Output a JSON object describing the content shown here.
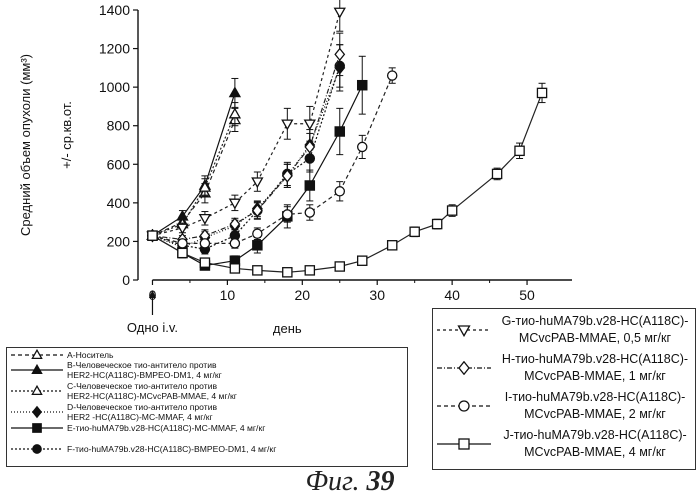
{
  "chart_data": {
    "type": "line",
    "title": "",
    "xlabel": "день",
    "ylabel": "Средний объем опухоли  (мм³)",
    "ylabel2": "+/- ср.кв.от.",
    "xlim": [
      -3,
      56
    ],
    "ylim": [
      0,
      1400
    ],
    "xticks": [
      0,
      10,
      20,
      30,
      40,
      50
    ],
    "yticks": [
      0,
      200,
      400,
      600,
      800,
      1000,
      1200,
      1400
    ],
    "annotation": "Одно i.v.",
    "series": [
      {
        "name": "A-Носитель",
        "marker": "triangle-up",
        "fill": "none",
        "dash": "4,3",
        "color": "#222",
        "x": [
          0,
          4,
          7,
          11
        ],
        "y": [
          230,
          300,
          450,
          830
        ],
        "err": [
          0,
          30,
          50,
          60
        ]
      },
      {
        "name": "B-Человеческое тио-антитело против\nHER2-HC(A118C)-BMPEO-DM1, 4 мг/кг",
        "marker": "triangle-up",
        "fill": "solid",
        "dash": "",
        "color": "#111",
        "x": [
          0,
          4,
          7,
          11
        ],
        "y": [
          230,
          330,
          490,
          970
        ],
        "err": [
          0,
          30,
          50,
          75
        ]
      },
      {
        "name": "C-Человеческое тио-антитело против\nHER2-HC(A118C)-MCvcPAB-MMAE, 4 мг/кг",
        "marker": "triangle-up",
        "fill": "none",
        "dash": "2,2",
        "color": "#222",
        "x": [
          0,
          4,
          7,
          11
        ],
        "y": [
          230,
          290,
          480,
          860
        ],
        "err": [
          0,
          25,
          45,
          60
        ]
      },
      {
        "name": "D-Человеческое тио-антитело против\nHER2 -HC(A118C)-MC-MMAF, 4 мг/кг",
        "marker": "diamond",
        "fill": "solid",
        "dash": "1,2",
        "color": "#111",
        "x": [
          0,
          4,
          7,
          11,
          14,
          18,
          21,
          25
        ],
        "y": [
          230,
          170,
          220,
          280,
          370,
          540,
          700,
          1100
        ],
        "err": [
          0,
          20,
          30,
          30,
          40,
          60,
          80,
          120
        ]
      },
      {
        "name": "E-тио-huMA79b.v28-HC(A118C)-MC-MMAF, 4 мг/кг",
        "marker": "square",
        "fill": "solid",
        "dash": "",
        "color": "#111",
        "x": [
          0,
          4,
          7,
          11,
          14,
          18,
          21,
          25,
          28
        ],
        "y": [
          230,
          140,
          75,
          100,
          180,
          330,
          490,
          770,
          1010
        ],
        "err": [
          0,
          25,
          20,
          25,
          40,
          60,
          80,
          120,
          150
        ]
      },
      {
        "name": "F-тио-huMA79b.v28-HC(A118C)-BMPEO-DM1, 4 мг/кг",
        "marker": "circle",
        "fill": "solid",
        "dash": "2,2",
        "color": "#111",
        "x": [
          0,
          4,
          7,
          11,
          14,
          18,
          21,
          25
        ],
        "y": [
          230,
          180,
          160,
          230,
          360,
          550,
          630,
          1110
        ],
        "err": [
          0,
          20,
          25,
          35,
          45,
          60,
          70,
          110
        ]
      },
      {
        "name": "G-тио-huMA79b.v28-HC(A118C)-\nMCvcPAB-MMAE, 0,5 мг/кг",
        "marker": "triangle-down",
        "fill": "none",
        "dash": "3,3",
        "color": "#222",
        "x": [
          0,
          4,
          7,
          11,
          14,
          18,
          21,
          25
        ],
        "y": [
          230,
          270,
          320,
          400,
          510,
          810,
          810,
          1390
        ],
        "err": [
          0,
          25,
          35,
          40,
          50,
          80,
          90,
          100
        ]
      },
      {
        "name": "H-тио-huMA79b.v28-HC(A118C)-\nMCvcPAB-MMAE, 1 мг/кг",
        "marker": "diamond",
        "fill": "none",
        "dash": "5,2,1,2",
        "color": "#222",
        "x": [
          0,
          4,
          7,
          11,
          14,
          18,
          21,
          25
        ],
        "y": [
          230,
          210,
          230,
          290,
          360,
          540,
          690,
          1170
        ],
        "err": [
          0,
          20,
          30,
          30,
          40,
          60,
          70,
          110
        ]
      },
      {
        "name": "I-тио-huMA79b.v28-HC(A118C)-\nMCvcPAB-MMAE, 2 мг/кг",
        "marker": "circle",
        "fill": "none",
        "dash": "4,3",
        "color": "#222",
        "x": [
          0,
          4,
          7,
          11,
          14,
          18,
          21,
          25,
          28,
          32
        ],
        "y": [
          230,
          190,
          190,
          190,
          240,
          340,
          350,
          460,
          690,
          1060
        ],
        "err": [
          0,
          20,
          20,
          25,
          30,
          40,
          40,
          50,
          60,
          40
        ]
      },
      {
        "name": "J-тио-huMA79b.v28-HC(A118C)-\nMCvcPAB-MMAE, 4 мг/кг",
        "marker": "square",
        "fill": "none",
        "dash": "",
        "color": "#222",
        "x": [
          0,
          4,
          7,
          11,
          14,
          18,
          21,
          25,
          28,
          32,
          35,
          38,
          40,
          46,
          49,
          52
        ],
        "y": [
          230,
          140,
          90,
          60,
          50,
          40,
          50,
          70,
          100,
          180,
          250,
          290,
          360,
          550,
          670,
          970
        ],
        "err": [
          0,
          15,
          15,
          10,
          10,
          10,
          10,
          15,
          15,
          20,
          25,
          25,
          30,
          30,
          40,
          50
        ]
      }
    ]
  },
  "legend_left": [
    0,
    1,
    2,
    3,
    4,
    5
  ],
  "legend_right": [
    6,
    7,
    8,
    9
  ],
  "caption_prefix": "Фиг.",
  "caption_number": "39"
}
